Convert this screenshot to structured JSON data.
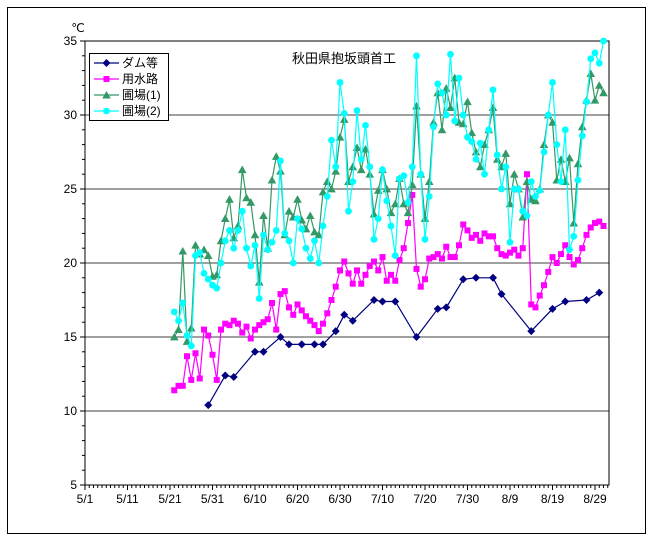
{
  "window": {
    "background": "#FFFFFF",
    "frame_color": "#000000"
  },
  "chart_data": {
    "type": "line",
    "title": "秋田県抱坂頭首工",
    "unit_label": "℃",
    "grid": true,
    "legend_position": "top-left-inside",
    "ylim": [
      5,
      35
    ],
    "y_ticks": [
      5,
      10,
      15,
      20,
      25,
      30,
      35
    ],
    "grid_y_values": [
      10,
      15,
      20,
      25,
      30
    ],
    "x_tick_labels": [
      "5/1",
      "5/11",
      "5/21",
      "5/31",
      "6/10",
      "6/20",
      "6/30",
      "7/10",
      "7/20",
      "7/30",
      "8/9",
      "8/19",
      "8/29"
    ],
    "x_first_date": "5/22",
    "x_last_date": "8/31",
    "x_step": "daily",
    "x_first_day_offset_from_5_1": 21,
    "series": [
      {
        "name": "ダム等",
        "color": "#000080",
        "marker": "diamond",
        "values": [
          null,
          null,
          null,
          null,
          null,
          null,
          null,
          null,
          10.4,
          null,
          null,
          null,
          12.4,
          null,
          12.3,
          null,
          null,
          null,
          null,
          14,
          null,
          14,
          null,
          null,
          null,
          15,
          null,
          14.5,
          null,
          null,
          14.5,
          null,
          null,
          14.5,
          null,
          14.5,
          null,
          null,
          15.4,
          null,
          16.5,
          null,
          16.1,
          null,
          null,
          null,
          null,
          17.5,
          null,
          17.4,
          null,
          null,
          17.4,
          null,
          null,
          null,
          null,
          15,
          null,
          null,
          null,
          null,
          16.9,
          null,
          17,
          null,
          null,
          null,
          18.9,
          null,
          null,
          19,
          null,
          null,
          null,
          19,
          null,
          17.9,
          null,
          null,
          null,
          null,
          null,
          null,
          15.4,
          null,
          null,
          null,
          null,
          16.9,
          null,
          null,
          17.4,
          null,
          null,
          null,
          null,
          17.5,
          null,
          null,
          18,
          null
        ]
      },
      {
        "name": "用水路",
        "color": "#FF00FF",
        "marker": "square",
        "values": [
          11.4,
          11.7,
          11.7,
          13.7,
          12.1,
          13.9,
          12.2,
          15.5,
          15.1,
          13.8,
          12.1,
          15.5,
          15.9,
          15.8,
          16.1,
          15.9,
          15.3,
          15.7,
          14.9,
          15.5,
          15.8,
          16.0,
          16.2,
          17.3,
          15.5,
          17.9,
          18.1,
          17.0,
          16.5,
          17.2,
          16.8,
          16.4,
          16.1,
          15.8,
          15.4,
          15.9,
          16.6,
          17.5,
          18.4,
          19.5,
          20.1,
          19.3,
          18.6,
          19.5,
          18.6,
          19.2,
          19.8,
          20.1,
          19.5,
          20.4,
          18.8,
          19.2,
          18.8,
          20.2,
          21.0,
          22.7,
          24.6,
          19.6,
          18.4,
          18.9,
          20.3,
          20.4,
          20.6,
          20.3,
          21.1,
          20.4,
          20.4,
          21.2,
          22.6,
          22.2,
          21.7,
          21.9,
          21.5,
          22.0,
          21.8,
          21.8,
          21.0,
          20.6,
          20.5,
          20.7,
          20.9,
          20.5,
          21.0,
          26.0,
          17.2,
          17.0,
          17.8,
          18.5,
          19.4,
          20.4,
          20.0,
          20.6,
          21.2,
          20.4,
          19.9,
          20.2,
          21.0,
          21.9,
          22.4,
          22.7,
          22.8,
          22.5
        ]
      },
      {
        "name": "圃場(1)",
        "color": "#339966",
        "marker": "triangle",
        "values": [
          15.0,
          15.5,
          20.8,
          14.7,
          15.6,
          21.2,
          20.6,
          20.9,
          20.5,
          19.1,
          19.2,
          21.5,
          23.0,
          24.3,
          21.7,
          22.5,
          26.3,
          24.4,
          24.1,
          21.9,
          18.7,
          23.2,
          21.0,
          25.6,
          27.2,
          26.2,
          21.9,
          23.5,
          23.1,
          24.3,
          22.9,
          22.3,
          23.2,
          22.1,
          21.9,
          24.8,
          25.5,
          25.0,
          26.2,
          28.5,
          29.7,
          25.5,
          26.5,
          27.8,
          26.3,
          27.7,
          26.0,
          23.3,
          24.9,
          26.3,
          25.0,
          23.4,
          24.0,
          25.7,
          24.0,
          23.4,
          25.3,
          30.6,
          26.0,
          23.0,
          25.5,
          29.5,
          31.5,
          29.0,
          31.8,
          30.5,
          32.5,
          29.5,
          29.4,
          30.9,
          28.8,
          27.5,
          26.5,
          28.0,
          29.0,
          30.5,
          27.0,
          26.5,
          27.4,
          24.0,
          26.0,
          25.0,
          23.1,
          25.5,
          24.3,
          24.2,
          25.0,
          28.0,
          30.0,
          29.5,
          25.6,
          27.0,
          25.5,
          27.1,
          22.7,
          26.7,
          29.2,
          31.0,
          32.8,
          31.0,
          32.0,
          31.5
        ]
      },
      {
        "name": "圃場(2)",
        "color": "#00FFFF",
        "marker": "circle",
        "values": [
          16.7,
          16.1,
          17.3,
          15.1,
          14.4,
          20.5,
          20.7,
          19.3,
          18.9,
          18.5,
          18.3,
          20.0,
          21.5,
          22.2,
          21.0,
          22.2,
          23.5,
          21.0,
          19.8,
          21.2,
          17.6,
          21.9,
          20.9,
          21.4,
          22.2,
          26.9,
          22.0,
          21.5,
          20.0,
          23.0,
          22.3,
          21.0,
          20.3,
          21.5,
          20.0,
          22.5,
          24.5,
          28.3,
          26.5,
          32.2,
          30.1,
          23.5,
          25.5,
          30.3,
          27.0,
          29.3,
          26.5,
          21.6,
          23.0,
          26.3,
          24.2,
          22.5,
          20.5,
          25.7,
          25.9,
          24.1,
          26.5,
          34.0,
          26.0,
          21.6,
          24.5,
          29.2,
          32.1,
          31.5,
          30.0,
          34.1,
          29.6,
          32.5,
          30.0,
          28.5,
          28.2,
          27.0,
          28.1,
          26.0,
          29.0,
          31.7,
          27.3,
          25.0,
          26.5,
          21.4,
          25.0,
          25.0,
          23.5,
          23.2,
          25.5,
          24.5,
          24.9,
          27.5,
          30.0,
          32.2,
          28.0,
          25.5,
          29.0,
          20.9,
          21.8,
          25.6,
          28.6,
          30.9,
          33.8,
          34.2,
          33.5,
          35.0
        ]
      }
    ]
  }
}
